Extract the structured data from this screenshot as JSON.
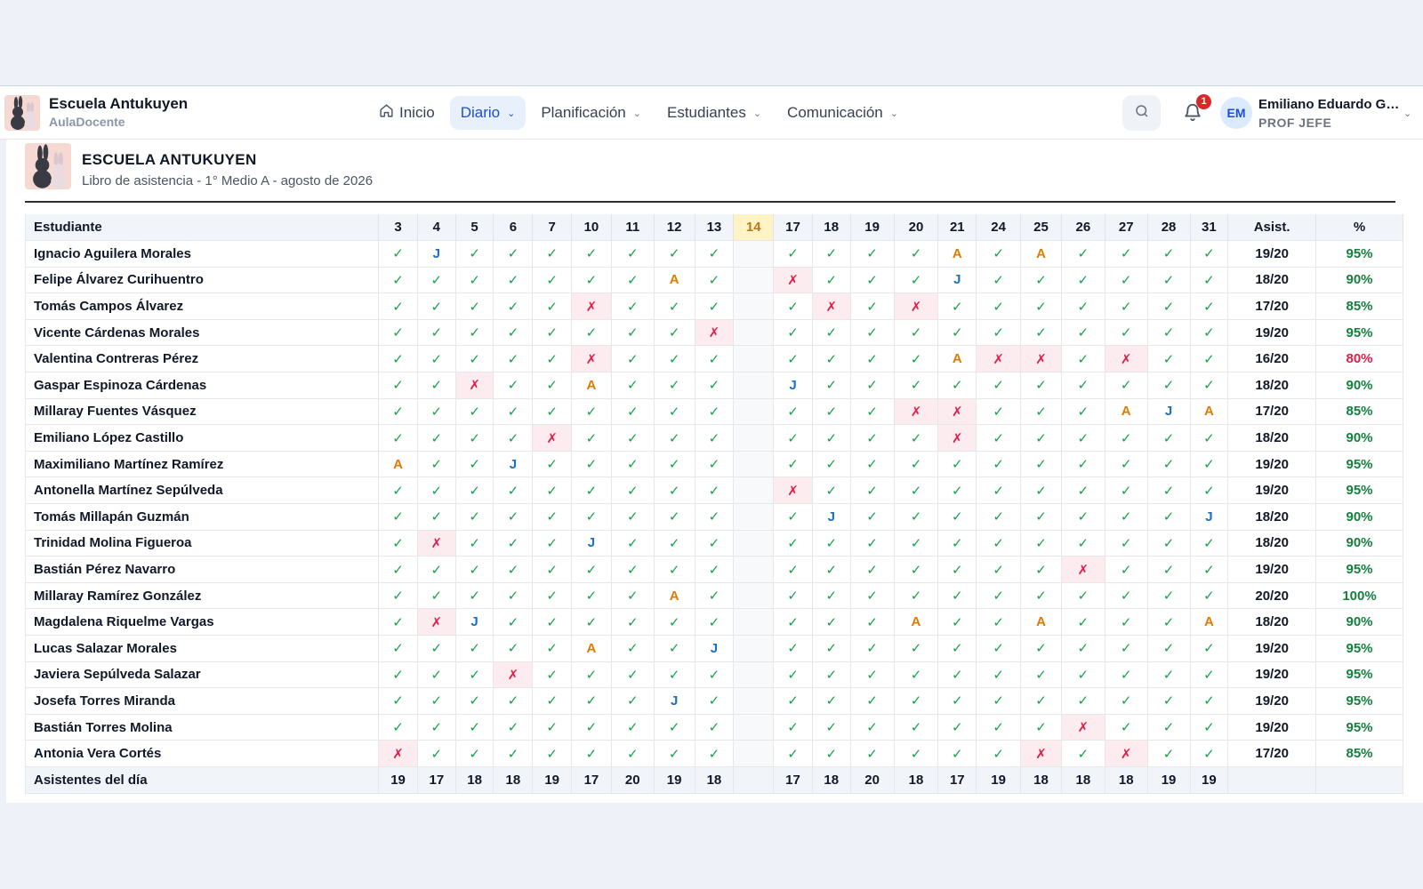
{
  "app": {
    "brand_title": "Escuela Antukuyen",
    "brand_subtitle": "AulaDocente"
  },
  "nav": {
    "items": [
      {
        "label": "Inicio",
        "icon": "home-icon",
        "active": false
      },
      {
        "label": "Diario",
        "active": true
      },
      {
        "label": "Planificación",
        "active": false
      },
      {
        "label": "Estudiantes",
        "active": false
      },
      {
        "label": "Comunicación",
        "active": false
      }
    ]
  },
  "header": {
    "notification_count": "1",
    "avatar_initials": "EM",
    "user_name": "Emiliano Eduardo Gu...",
    "user_role": "PROF JEFE"
  },
  "document": {
    "title": "ESCUELA ANTUKUYEN",
    "subtitle": "Libro de asistencia - 1° Medio A - agosto de 2026"
  },
  "table": {
    "student_header": "Estudiante",
    "days": [
      "3",
      "4",
      "5",
      "6",
      "7",
      "10",
      "11",
      "12",
      "13",
      "14",
      "17",
      "18",
      "19",
      "20",
      "21",
      "24",
      "25",
      "26",
      "27",
      "28",
      "31"
    ],
    "highlighted_day": "14",
    "asist_header": "Asist.",
    "pct_header": "%",
    "legend": {
      "P": "✓",
      "X": "✗",
      "J": "J",
      "A": "A"
    },
    "rows": [
      {
        "name": "Ignacio Aguilera Morales",
        "marks": "PJPPPPPPP-PPPPAPAPPPP",
        "asist": "19/20",
        "pct": "95%"
      },
      {
        "name": "Felipe Álvarez Curihuentro",
        "marks": "PPPPPPPAP-XPPPJPPPPPP",
        "asist": "18/20",
        "pct": "90%"
      },
      {
        "name": "Tomás Campos Álvarez",
        "marks": "PPPPPXPPP-PXPXPPPPPPP",
        "asist": "17/20",
        "pct": "85%"
      },
      {
        "name": "Vicente Cárdenas Morales",
        "marks": "PPPPPPPPX-PPPPPPPPPPP",
        "asist": "19/20",
        "pct": "95%"
      },
      {
        "name": "Valentina Contreras Pérez",
        "marks": "PPPPPXPPP-PPPPAXXPXPP",
        "asist": "16/20",
        "pct": "80%"
      },
      {
        "name": "Gaspar Espinoza Cárdenas",
        "marks": "PPXPPAPPP-JPPPPPPPPPP",
        "asist": "18/20",
        "pct": "90%"
      },
      {
        "name": "Millaray Fuentes Vásquez",
        "marks": "PPPPPPPPP-PPPXXPPPAJA",
        "asist": "17/20",
        "pct": "85%"
      },
      {
        "name": "Emiliano López Castillo",
        "marks": "PPPPXPPPP-PPPPXPPPPPP",
        "asist": "18/20",
        "pct": "90%"
      },
      {
        "name": "Maximiliano Martínez Ramírez",
        "marks": "APPJPPPPP-PPPPPPPPPPP",
        "asist": "19/20",
        "pct": "95%"
      },
      {
        "name": "Antonella Martínez Sepúlveda",
        "marks": "PPPPPPPPP-XPPPPPPPPPP",
        "asist": "19/20",
        "pct": "95%"
      },
      {
        "name": "Tomás Millapán Guzmán",
        "marks": "PPPPPPPPP-PJPPPPPPPPJ",
        "asist": "18/20",
        "pct": "90%"
      },
      {
        "name": "Trinidad Molina Figueroa",
        "marks": "PXPPPJPPP-PPPPPPPPPPP",
        "asist": "18/20",
        "pct": "90%"
      },
      {
        "name": "Bastián Pérez Navarro",
        "marks": "PPPPPPPPP-PPPPPPPXPPP",
        "asist": "19/20",
        "pct": "95%"
      },
      {
        "name": "Millaray Ramírez González",
        "marks": "PPPPPPPAP-PPPPPPPPPPP",
        "asist": "20/20",
        "pct": "100%"
      },
      {
        "name": "Magdalena Riquelme Vargas",
        "marks": "PXJPPPPPP-PPPAPPAPPPA",
        "asist": "18/20",
        "pct": "90%"
      },
      {
        "name": "Lucas Salazar Morales",
        "marks": "PPPPPAPPJ-PPPPPPPPPPP",
        "asist": "19/20",
        "pct": "95%"
      },
      {
        "name": "Javiera Sepúlveda Salazar",
        "marks": "PPPXPPPPP-PPPPPPPPPPP",
        "asist": "19/20",
        "pct": "95%"
      },
      {
        "name": "Josefa Torres Miranda",
        "marks": "PPPPPPPJP-PPPPPPPPPPP",
        "asist": "19/20",
        "pct": "95%"
      },
      {
        "name": "Bastián Torres Molina",
        "marks": "PPPPPPPPP-PPPPPPPXPPP",
        "asist": "19/20",
        "pct": "95%"
      },
      {
        "name": "Antonia Vera Cortés",
        "marks": "XPPPPPPPP-PPPPPPXPXPP",
        "asist": "17/20",
        "pct": "85%"
      }
    ],
    "footer_label": "Asistentes del día",
    "footer_counts": [
      "19",
      "17",
      "18",
      "18",
      "19",
      "17",
      "20",
      "19",
      "18",
      "",
      "17",
      "18",
      "20",
      "18",
      "17",
      "19",
      "18",
      "18",
      "18",
      "19",
      "19"
    ]
  },
  "colors": {
    "present": "#16a34a",
    "absent": "#e11d48",
    "justified": "#1d6fc4",
    "late": "#e07b00",
    "accent": "#1d4ed8"
  }
}
